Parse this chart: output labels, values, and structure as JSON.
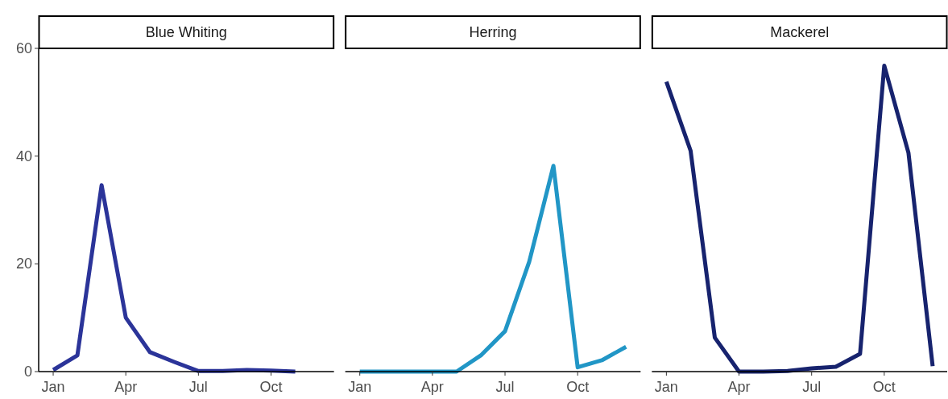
{
  "chart_data": [
    {
      "type": "line",
      "title": "Blue Whiting",
      "categories": [
        "Jan",
        null,
        null,
        "Apr",
        null,
        null,
        "Jul",
        null,
        null,
        "Oct",
        null,
        null
      ],
      "ylim": [
        0,
        60
      ],
      "yticks": [
        0,
        20,
        40,
        60
      ],
      "grid": false,
      "series": [
        {
          "color": "#2b3499",
          "values": [
            0.3,
            3,
            34.6,
            10,
            3.6,
            1.8,
            0.1,
            0.1,
            0.3,
            0.2,
            0,
            null
          ]
        }
      ]
    },
    {
      "type": "line",
      "title": "Herring",
      "categories": [
        "Jan",
        null,
        null,
        "Apr",
        null,
        null,
        "Jul",
        null,
        null,
        "Oct",
        null,
        null
      ],
      "ylim": [
        0,
        60
      ],
      "tick_labels": "x",
      "grid": false,
      "series": [
        {
          "color": "#2196c6",
          "values": [
            0,
            0,
            0,
            0,
            0,
            3,
            7.5,
            20.4,
            38.2,
            0.8,
            2.1,
            4.6
          ]
        }
      ]
    },
    {
      "type": "line",
      "title": "Mackerel",
      "categories": [
        "Jan",
        null,
        null,
        "Apr",
        null,
        null,
        "Jul",
        null,
        null,
        "Oct",
        null,
        null
      ],
      "ylim": [
        0,
        60
      ],
      "tick_labels": "x",
      "grid": false,
      "series": [
        {
          "color": "#17236e",
          "values": [
            53.8,
            41,
            6.3,
            0,
            0,
            0.1,
            0.6,
            0.9,
            3.3,
            56.8,
            40.6,
            1
          ]
        }
      ]
    }
  ]
}
